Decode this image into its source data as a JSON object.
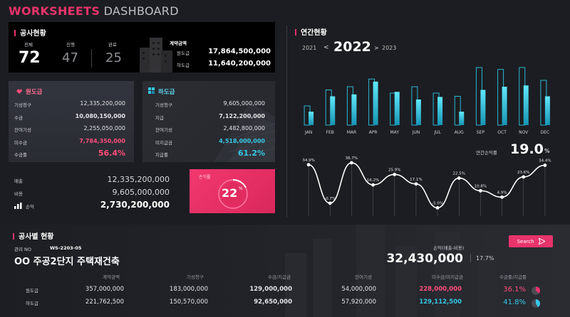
{
  "header": {
    "title_main": "WORKSHEETS",
    "title_sub": "DASHBOARD"
  },
  "status": {
    "title": "공사현황",
    "total_label": "전체",
    "total": "72",
    "progress_label": "진행",
    "progress": "47",
    "done_label": "완료",
    "done": "25",
    "contract_label": "계약금액",
    "primary_label": "원도급",
    "primary_value": "17,864,500,000",
    "sub_label": "하도급",
    "sub_value": "11,640,200,000"
  },
  "primary": {
    "title": "원도급",
    "rows": [
      {
        "label": "기성청구",
        "value": "12,335,200,000"
      },
      {
        "label": "수금",
        "value": "10,080,150,000"
      },
      {
        "label": "잔여기성",
        "value": "2,255,050,000"
      },
      {
        "label": "미수금",
        "value": "7,784,350,000"
      },
      {
        "label": "수금률",
        "value": "56.4%"
      }
    ]
  },
  "subcontract": {
    "title": "하도급",
    "rows": [
      {
        "label": "기성청구",
        "value": "9,605,000,000"
      },
      {
        "label": "지급",
        "value": "7,122,200,000"
      },
      {
        "label": "잔여기성",
        "value": "2,482,800,000"
      },
      {
        "label": "미지급금",
        "value": "4,518,000,000"
      },
      {
        "label": "지급률",
        "value": "61.2%"
      }
    ]
  },
  "summary": {
    "sales_label": "매출",
    "sales": "12,335,200,000",
    "cost_label": "비용",
    "cost": "9,605,000,000",
    "profit_label": "손익",
    "profit": "2,730,200,000"
  },
  "profit_card": {
    "label": "손익률",
    "value": "22",
    "unit": "%"
  },
  "annual": {
    "title": "연간현황",
    "prev_year": "2021",
    "year": "2022",
    "next_year": "2023",
    "prev_arrow": "<",
    "next_arrow": ">",
    "rate_label": "연간손익률",
    "rate": "19.0",
    "rate_unit": "%"
  },
  "chart_data": [
    {
      "type": "bar",
      "categories": [
        "JAN",
        "FEB",
        "MAR",
        "APR",
        "MAY",
        "JUN",
        "JUL",
        "AUG",
        "SEP",
        "OCT",
        "NOV",
        "DEC"
      ],
      "series": [
        {
          "values": [
            30,
            55,
            60,
            72,
            50,
            60,
            50,
            45,
            90,
            87,
            90,
            70
          ]
        },
        {
          "values": [
            21,
            45,
            48,
            68,
            52,
            40,
            44,
            21,
            55,
            60,
            62,
            45
          ]
        }
      ],
      "ylim": [
        0,
        100
      ],
      "grid": false,
      "colors": [
        "#0e7e96",
        "#3fd8f0"
      ]
    },
    {
      "type": "line",
      "categories": [
        "JAN",
        "FEB",
        "MAR",
        "APR",
        "MAY",
        "JUN",
        "JUL",
        "AUG",
        "SEP",
        "OCT",
        "NOV",
        "DEC"
      ],
      "values": [
        34.9,
        -0.7,
        36.7,
        16.2,
        25.9,
        17.1,
        -5.0,
        22.5,
        10.8,
        4.9,
        23.6,
        34.4
      ],
      "labels": [
        "34.9%",
        "-0.7%",
        "36.7%",
        "16.2%",
        "25.9%",
        "17.1%",
        "-5.0%",
        "22.5%",
        "10.8%",
        "4.9%",
        "23.6%",
        "34.4%"
      ],
      "ylim": [
        -10,
        40
      ],
      "grid": false,
      "colors": [
        "#ffffff"
      ]
    }
  ],
  "project": {
    "title": "공사별 현황",
    "mgmt_label": "관리 NO",
    "mgmt_no": "WS-2203-05",
    "name": "OO 주공2단지 주택재건축",
    "profit_label": "손익(매출-비용)",
    "profit": "32,430,000",
    "rate": "17.7%",
    "search_label": "Search",
    "columns": [
      "계약금액",
      "기성청구",
      "수금/지급금",
      "잔여기성",
      "미수금/미지급금",
      "수금률/지급률"
    ],
    "rows": [
      {
        "type": "원도급",
        "contract": "357,000,000",
        "claim": "183,000,000",
        "collected": "129,000,000",
        "remaining": "54,000,000",
        "unpaid": "228,000,000",
        "rate": "36.1%",
        "rate_value": 36.1
      },
      {
        "type": "하도급",
        "contract": "221,762,500",
        "claim": "150,570,000",
        "collected": "92,650,000",
        "remaining": "57,920,000",
        "unpaid": "129,112,500",
        "rate": "41.8%",
        "rate_value": 41.8
      }
    ]
  },
  "colors": {
    "accent": "#e8336b",
    "cyan": "#35c8e6",
    "pink_text": "#ff4d7c"
  }
}
